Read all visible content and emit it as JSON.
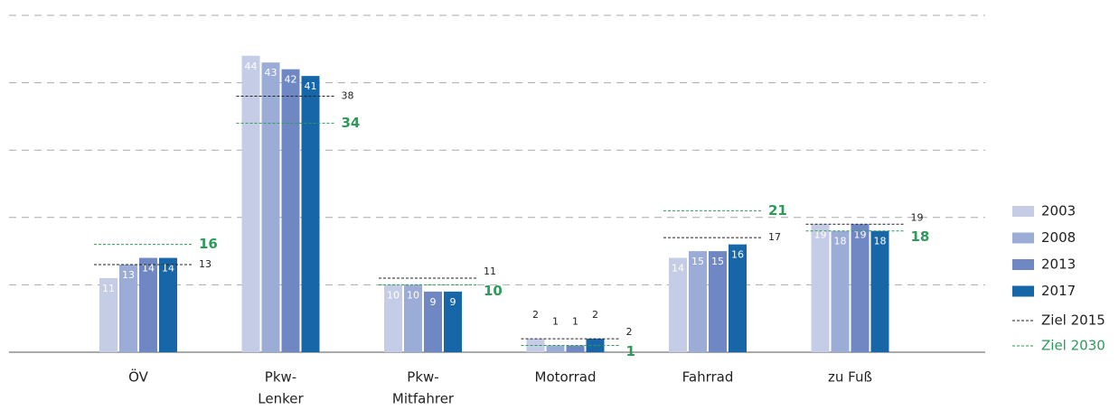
{
  "chart_data": {
    "type": "bar",
    "categories": [
      [
        "ÖV"
      ],
      [
        "Pkw-",
        "Lenker"
      ],
      [
        "Pkw-",
        "Mitfahrer"
      ],
      [
        "Motorrad"
      ],
      [
        "Fahrrad"
      ],
      [
        "zu Fuß"
      ]
    ],
    "series": [
      {
        "name": "2003",
        "color": "#c5cde6",
        "values": [
          11,
          44,
          10,
          2,
          14,
          19
        ]
      },
      {
        "name": "2008",
        "color": "#9bacd7",
        "values": [
          13,
          43,
          10,
          1,
          15,
          18
        ]
      },
      {
        "name": "2013",
        "color": "#6f88c3",
        "values": [
          14,
          42,
          9,
          1,
          15,
          19
        ]
      },
      {
        "name": "2017",
        "color": "#1766a8",
        "values": [
          14,
          41,
          9,
          2,
          16,
          18
        ]
      }
    ],
    "targets": [
      {
        "name": "Ziel 2015",
        "color": "#222222",
        "values": [
          13,
          38,
          11,
          2,
          17,
          19
        ]
      },
      {
        "name": "Ziel 2030",
        "color": "#2e9a5a",
        "values": [
          16,
          34,
          10,
          1,
          21,
          18
        ]
      }
    ],
    "ylim": [
      0,
      50
    ],
    "yticks": [
      0,
      10,
      20,
      30,
      40,
      50
    ],
    "grid": true,
    "legend": "right"
  }
}
